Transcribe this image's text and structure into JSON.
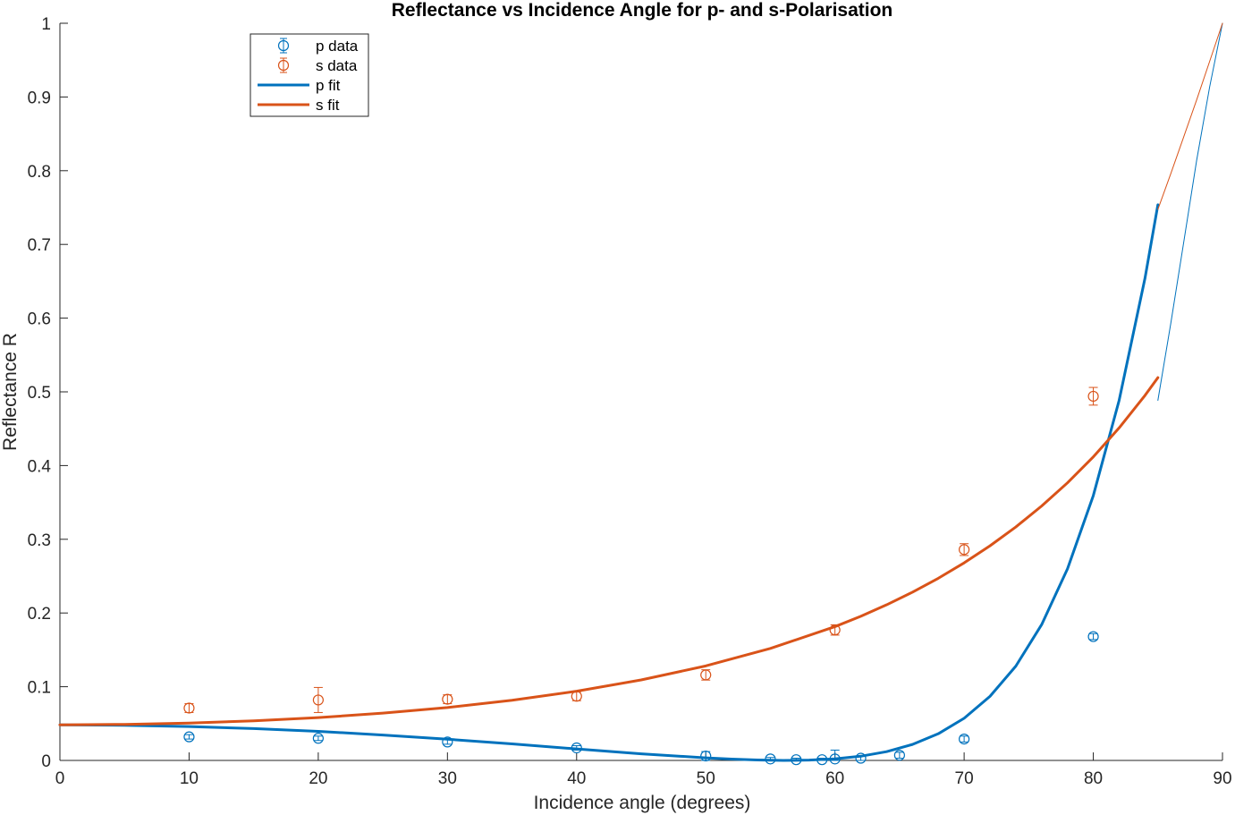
{
  "chart_data": {
    "type": "scatter",
    "title": "Reflectance vs Incidence Angle for p- and s-Polarisation",
    "xlabel": "Incidence angle (degrees)",
    "ylabel": "Reflectance R",
    "xlim": [
      0,
      90
    ],
    "ylim": [
      0,
      1
    ],
    "xticks": [
      0,
      10,
      20,
      30,
      40,
      50,
      60,
      70,
      80,
      90
    ],
    "yticks": [
      0,
      0.1,
      0.2,
      0.3,
      0.4,
      0.5,
      0.6,
      0.7,
      0.8,
      0.9,
      1
    ],
    "xtick_labels": [
      "0",
      "10",
      "20",
      "30",
      "40",
      "50",
      "60",
      "70",
      "80",
      "90"
    ],
    "ytick_labels": [
      "0",
      "0.1",
      "0.2",
      "0.3",
      "0.4",
      "0.5",
      "0.6",
      "0.7",
      "0.8",
      "0.9",
      "1"
    ],
    "grid": false,
    "legend_position": "top-left",
    "series": [
      {
        "name": "p data",
        "kind": "errorbar",
        "color": "#0072BD",
        "x": [
          10,
          20,
          30,
          40,
          50,
          55,
          57,
          59,
          60,
          62,
          65,
          70,
          80
        ],
        "y": [
          0.032,
          0.03,
          0.025,
          0.017,
          0.006,
          0.002,
          0.001,
          0.001,
          0.002,
          0.003,
          0.007,
          0.029,
          0.168
        ],
        "err": [
          0.003,
          0.003,
          0.003,
          0.003,
          0.006,
          0.002,
          0.002,
          0.002,
          0.012,
          0.003,
          0.004,
          0.004,
          0.004
        ]
      },
      {
        "name": "s data",
        "kind": "errorbar",
        "color": "#D95319",
        "x": [
          10,
          20,
          30,
          40,
          50,
          60,
          70,
          80
        ],
        "y": [
          0.071,
          0.082,
          0.083,
          0.087,
          0.116,
          0.177,
          0.286,
          0.494
        ],
        "err": [
          0.006,
          0.017,
          0.006,
          0.006,
          0.007,
          0.007,
          0.008,
          0.012
        ]
      },
      {
        "name": "p fit",
        "kind": "line",
        "color": "#0072BD",
        "x": [
          0,
          5,
          10,
          15,
          20,
          25,
          30,
          35,
          40,
          45,
          50,
          52,
          54,
          56,
          58,
          60,
          62,
          64,
          66,
          68,
          70,
          72,
          74,
          76,
          78,
          80,
          82,
          84,
          85
        ],
        "y": [
          0.0483,
          0.0477,
          0.046,
          0.0432,
          0.0394,
          0.0345,
          0.0288,
          0.0224,
          0.0156,
          0.009,
          0.0035,
          0.0018,
          0.0006,
          0.0,
          0.0004,
          0.0021,
          0.0057,
          0.0119,
          0.0217,
          0.0362,
          0.0572,
          0.0869,
          0.1279,
          0.1842,
          0.2598,
          0.3593,
          0.4885,
          0.654,
          0.7538
        ]
      },
      {
        "name": "s fit",
        "kind": "line",
        "color": "#D95319",
        "x": [
          0,
          5,
          10,
          15,
          20,
          25,
          30,
          35,
          40,
          45,
          50,
          55,
          60,
          62,
          64,
          66,
          68,
          70,
          72,
          74,
          76,
          78,
          80,
          82,
          84,
          85
        ],
        "y": [
          0.0483,
          0.0489,
          0.0507,
          0.0537,
          0.0581,
          0.0641,
          0.0718,
          0.0816,
          0.0939,
          0.1092,
          0.1282,
          0.1519,
          0.1815,
          0.1955,
          0.2111,
          0.2282,
          0.2471,
          0.268,
          0.2911,
          0.3167,
          0.3451,
          0.3766,
          0.4118,
          0.4511,
          0.4951,
          0.5193
        ]
      },
      {
        "name": "",
        "kind": "line",
        "color": "#0072BD",
        "thin": true,
        "x": [
          85,
          86,
          87,
          88,
          89,
          90
        ],
        "y": [
          0.4885,
          0.593,
          0.703,
          0.814,
          0.913,
          1.0
        ]
      },
      {
        "name": "",
        "kind": "line",
        "color": "#D95319",
        "thin": true,
        "x": [
          85,
          86,
          87,
          88,
          89,
          90
        ],
        "y": [
          0.7475,
          0.796,
          0.846,
          0.896,
          0.948,
          1.0
        ]
      }
    ]
  }
}
